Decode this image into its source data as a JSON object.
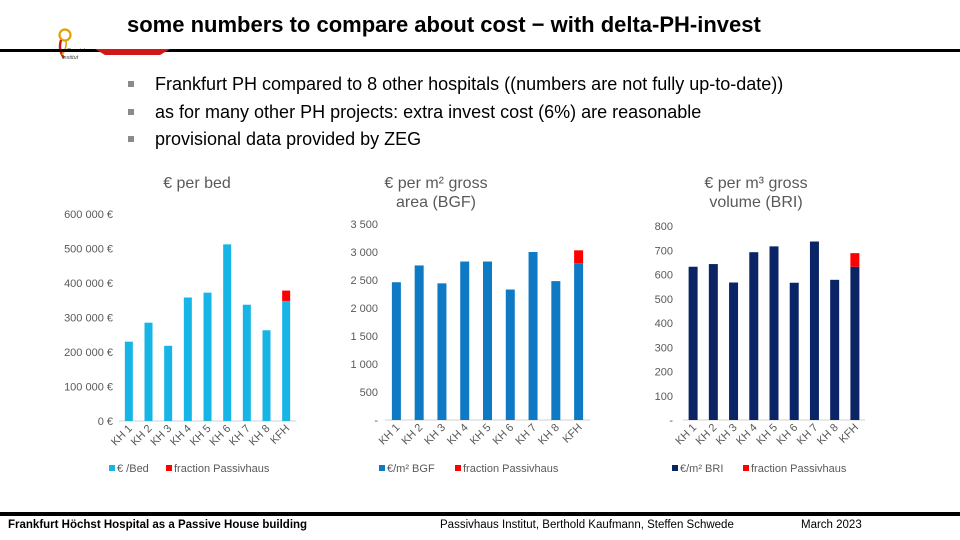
{
  "slide": {
    "title": "some numbers to compare about cost − with delta-PH-invest",
    "logo_text": "Passivhaus Institut",
    "bullets": [
      "Frankfurt PH compared to 8 other hospitals   ((numbers are not fully up-to-date))",
      "as for many other PH projects:  extra invest cost  (6%) are reasonable",
      "provisional data provided by ZEG"
    ],
    "footer": {
      "left": "Frankfurt Höchst Hospital  as a Passive House building",
      "middle": "Passivhaus Institut,  Berthold Kaufmann, Steffen Schwede",
      "right": "March 2023"
    },
    "colors": {
      "red": "#ff0000",
      "bar1": "#17b5e6",
      "bar2": "#0f7ac4",
      "bar3": "#0b2466"
    }
  },
  "chart_data": [
    {
      "type": "bar",
      "stacked": true,
      "title": "€ per bed",
      "categories": [
        "KH 1",
        "KH 2",
        "KH 3",
        "KH 4",
        "KH 5",
        "KH 6",
        "KH 7",
        "KH 8",
        "KFH"
      ],
      "ylim": [
        0,
        600000
      ],
      "yticks": [
        "0 €",
        "100 000 €",
        "200 000 €",
        "300 000 €",
        "400 000 €",
        "500 000 €",
        "600 000 €"
      ],
      "series": [
        {
          "name": "€ /Bed",
          "color": "#17b5e6",
          "values": [
            230000,
            285000,
            218000,
            358000,
            372000,
            512000,
            337000,
            263000,
            348000
          ]
        },
        {
          "name": "fraction Passivhaus",
          "color": "#ff0000",
          "values": [
            0,
            0,
            0,
            0,
            0,
            0,
            0,
            0,
            30000
          ]
        }
      ],
      "grid": false,
      "legend": "bottom"
    },
    {
      "type": "bar",
      "stacked": true,
      "title": "€ per m² gross area (BGF)",
      "title_lines": [
        "€ per m² gross",
        "area (BGF)"
      ],
      "categories": [
        "KH 1",
        "KH 2",
        "KH 3",
        "KH 4",
        "KH 5",
        "KH 6",
        "KH 7",
        "KH 8",
        "KFH"
      ],
      "ylim": [
        0,
        3500
      ],
      "yticks": [
        "-",
        "500",
        "1 000",
        "1 500",
        "2 000",
        "2 500",
        "3 000",
        "3 500"
      ],
      "series": [
        {
          "name": "€/m² BGF",
          "color": "#0f7ac4",
          "values": [
            2460,
            2760,
            2440,
            2830,
            2830,
            2330,
            3000,
            2480,
            2800
          ]
        },
        {
          "name": "fraction Passivhaus",
          "color": "#ff0000",
          "values": [
            0,
            0,
            0,
            0,
            0,
            0,
            0,
            0,
            230
          ]
        }
      ],
      "grid": false,
      "legend": "bottom"
    },
    {
      "type": "bar",
      "stacked": true,
      "title": "€ per m³ gross volume (BRI)",
      "title_lines": [
        "€ per m³ gross",
        "volume (BRI)"
      ],
      "categories": [
        "KH 1",
        "KH 2",
        "KH 3",
        "KH 4",
        "KH 5",
        "KH 6",
        "KH 7",
        "KH 8",
        "KFH"
      ],
      "ylim": [
        0,
        800
      ],
      "yticks": [
        "-",
        "100",
        "200",
        "300",
        "400",
        "500",
        "600",
        "700",
        "800"
      ],
      "series": [
        {
          "name": "€/m² BRI",
          "color": "#0b2466",
          "values": [
            632,
            643,
            567,
            692,
            716,
            566,
            736,
            578,
            632
          ]
        },
        {
          "name": "fraction Passivhaus",
          "color": "#ff0000",
          "values": [
            0,
            0,
            0,
            0,
            0,
            0,
            0,
            0,
            56
          ]
        }
      ],
      "grid": false,
      "legend": "bottom"
    }
  ]
}
